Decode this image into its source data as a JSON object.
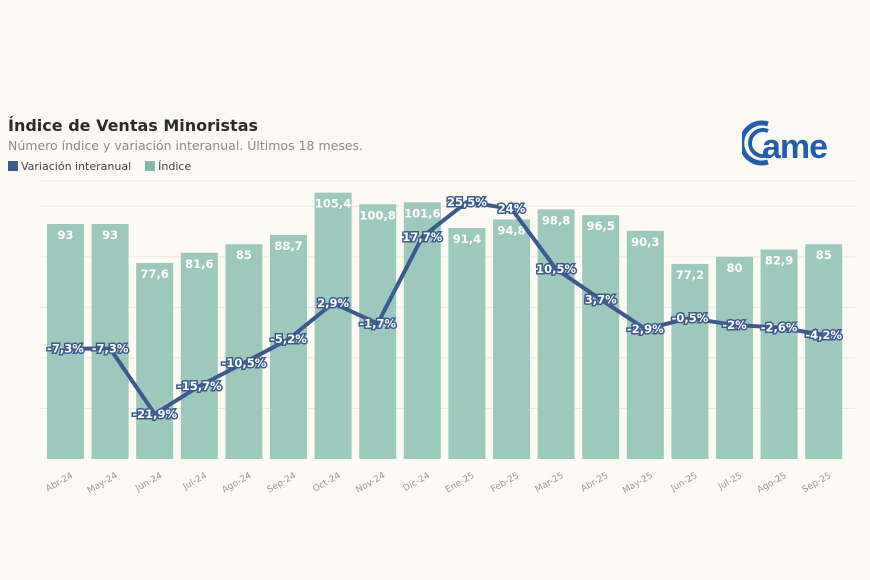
{
  "chart_data": {
    "type": "bar+line",
    "title": "Índice de Ventas Minoristas",
    "subtitle": "Número índice y variación interanual. Últimos 18 meses.",
    "categories": [
      "Abr-24",
      "May-24",
      "Jun-24",
      "Jul-24",
      "Ago-24",
      "Sep-24",
      "Oct-24",
      "Nov-24",
      "Dic-24",
      "Ene-25",
      "Feb-25",
      "Mar-25",
      "Abr-25",
      "May-25",
      "Jun-25",
      "Jul-25",
      "Ago-25",
      "Sep-25"
    ],
    "series": [
      {
        "name": "Índice",
        "type": "bar",
        "color": "#9dc9bd",
        "values": [
          93,
          93,
          77.6,
          81.6,
          85,
          88.7,
          105.4,
          100.8,
          101.6,
          91.4,
          94.8,
          98.8,
          96.5,
          90.3,
          77.2,
          80,
          82.9,
          85
        ],
        "labels": [
          "93",
          "93",
          "77,6",
          "81,6",
          "85",
          "88,7",
          "105,4",
          "100,8",
          "101,6",
          "91,4",
          "94,8",
          "98,8",
          "96,5",
          "90,3",
          "77,2",
          "80",
          "82,9",
          "85"
        ]
      },
      {
        "name": "Variación interanual",
        "type": "line",
        "color": "#3d5a8e",
        "values": [
          -7.3,
          -7.3,
          -21.9,
          -15.7,
          -10.5,
          -5.2,
          2.9,
          -1.7,
          17.7,
          25.5,
          24,
          10.5,
          3.7,
          -2.9,
          -0.5,
          -2,
          -2.6,
          -4.2
        ],
        "labels": [
          "-7,3%",
          "-7,3%",
          "-21,9%",
          "-15,7%",
          "-10,5%",
          "-5,2%",
          "2,9%",
          "-1,7%",
          "17,7%",
          "25,5%",
          "24%",
          "10,5%",
          "3,7%",
          "-2,9%",
          "-0,5%",
          "-2%",
          "-2,6%",
          "-4,2%"
        ]
      }
    ],
    "ylim_bar": [
      0,
      110
    ],
    "grid": true,
    "legend_placement": "top-left"
  },
  "logo": {
    "text": "came",
    "color": "#1f5fae"
  }
}
